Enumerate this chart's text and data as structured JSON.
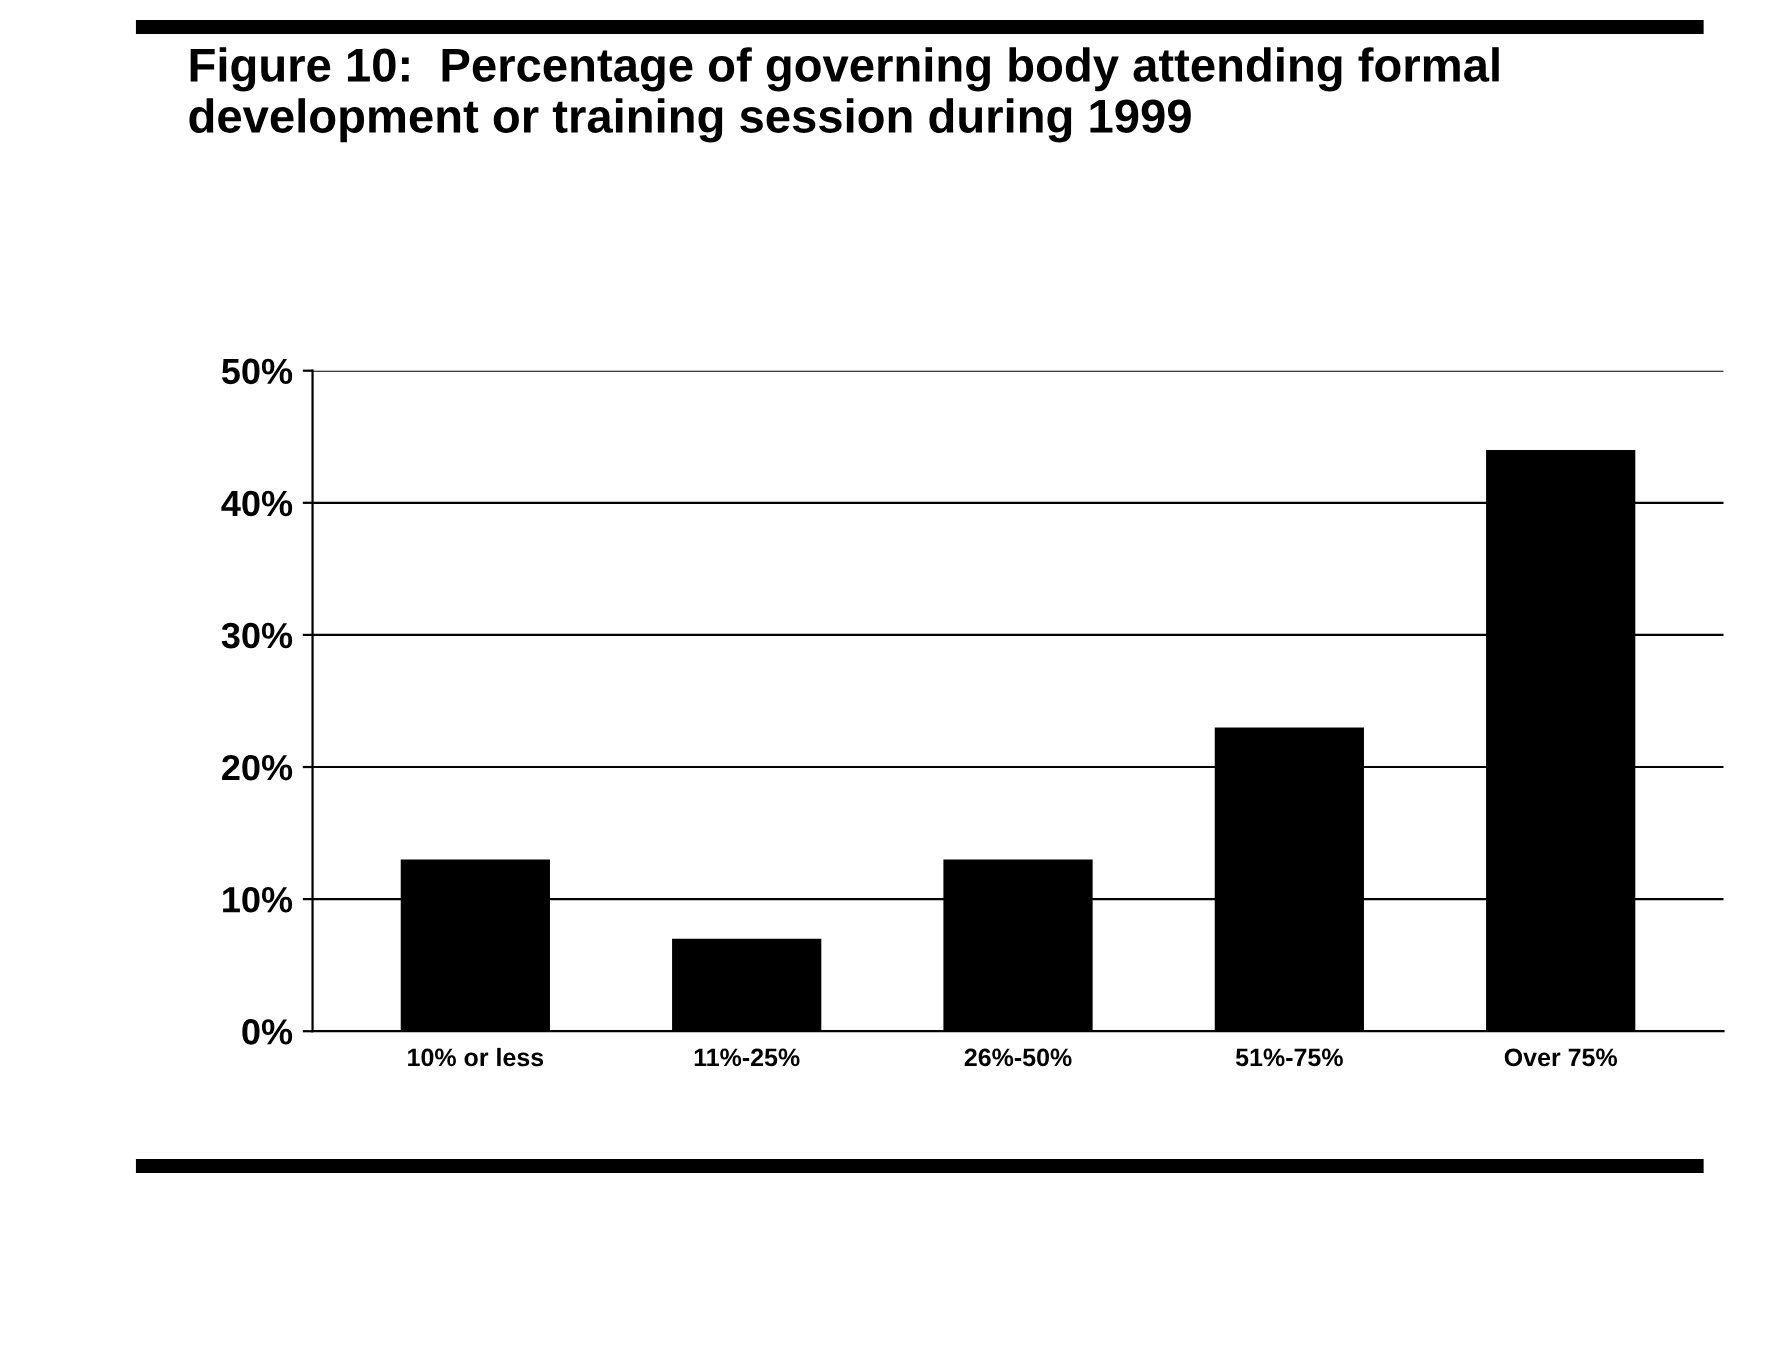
{
  "chart_data": {
    "type": "bar",
    "title": "Figure 10:  Percentage of governing body attending formal development or training session during 1999",
    "categories": [
      "10% or less",
      "11%-25%",
      "26%-50%",
      "51%-75%",
      "Over 75%"
    ],
    "values": [
      13,
      7,
      13,
      23,
      44
    ],
    "color": "#000000",
    "ylim": [
      0,
      50
    ],
    "yticks": [
      {
        "value": 0,
        "label": "0%"
      },
      {
        "value": 10,
        "label": "10%"
      },
      {
        "value": 20,
        "label": "20%"
      },
      {
        "value": 30,
        "label": "30%"
      },
      {
        "value": 40,
        "label": "40%"
      },
      {
        "value": 50,
        "label": "50%"
      }
    ],
    "grid": "y"
  }
}
